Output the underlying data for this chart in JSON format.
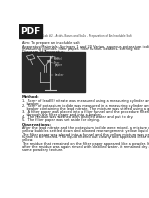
{
  "title_line1": "Lab #2 - Acids, Bases and Salts - Preparation of An Insoluble Salt",
  "aim": "Aim: To prepare an insoluble salt",
  "apparatus_text": "Apparatus/Materials: Syringes 1 and 20 Varian, aqueous potassium iodide, distilled water,",
  "apparatus_text2": "measuring cylinder, filter paper, filter funnel, beakers, stirring rod",
  "diagram_label": "Diagram of Apparatus:",
  "method_label": "Method:",
  "method_steps": [
    "1.  5cm³ of lead(II) nitrate was measured using a measuring cylinder and added to a",
    "    beaker.",
    "2.  5cm³ of potassium iodide was measured in a measuring cylinder and added to the",
    "    beaker containing the lead nitrate. The mixture was stirred using a glass rod.",
    "3.  A filter paper was placed into a filter funnel and the procedure filtered the mixture",
    "    through the filter paper and into a beaker.",
    "4.  The residue was washed with distilled water and put to dry.",
    "5.  The filter paper was set aside for drying."
  ],
  "observations_label": "Observations:",
  "obs1a": "After the lead nitrate and the potassium iodide were mixed, a mixture of yellow, mustard-",
  "obs1b": "yellow bubbles settled down and allowed rearrangement: yellow liquid in use.",
  "obs2a": "The filter paper was placed into a funnel and the yellow mixture was passed through the",
  "obs2b": "funnel to be filtered. The liquid filtered out clearly and appeared clear with a slight tint of",
  "obs2c": "yellow.",
  "obs3a": "The residue that remained on the filter paper appeared like a powder. It became compacted",
  "obs3b": "after the residue was again rinsed with distilled water, it remained dry and maintained the",
  "obs3c": "same powdery texture.",
  "bg_color": "#ffffff",
  "pdf_bg": "#1a1a1a",
  "pdf_text": "#ffffff",
  "body_text_color": "#111111",
  "diagram_bg": "#2a2a2a",
  "fs": 2.5,
  "lfs": 2.7
}
